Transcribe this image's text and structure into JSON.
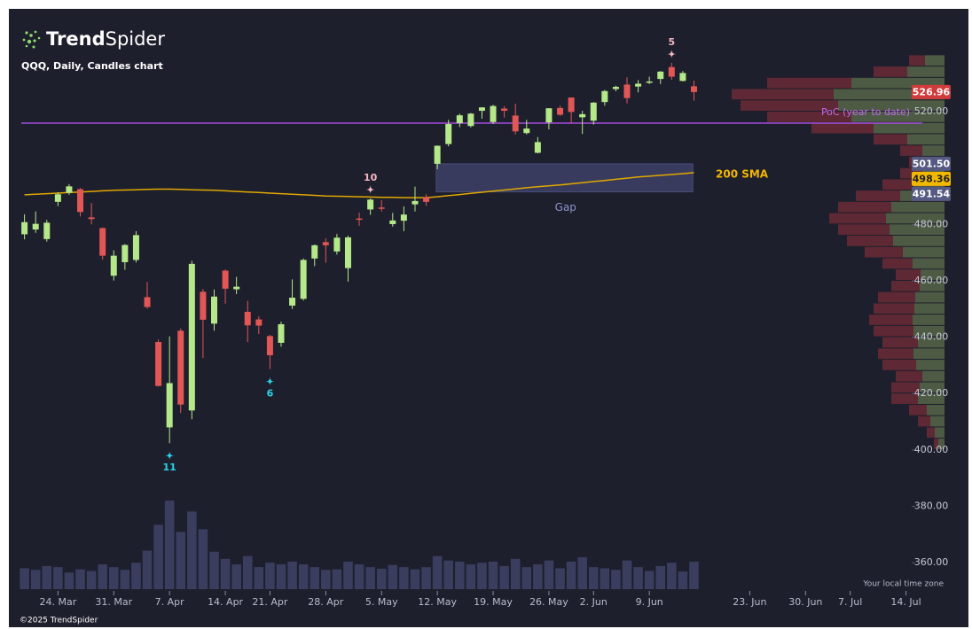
{
  "page": {
    "brand_bold": "Trend",
    "brand_regular": "Spider",
    "copyright": "©2025 TrendSpider",
    "timezone_note": "Your local time zone"
  },
  "chart_data": {
    "type": "candlestick",
    "title": "QQQ, Daily, Candles chart",
    "up_color": "#b4e889",
    "down_color": "#e25656",
    "xlim": [
      -1.4,
      84.6
    ],
    "ylim": [
      350,
      553
    ],
    "yticks": [
      {
        "value": 360,
        "label": "360.00"
      },
      {
        "value": 380,
        "label": "380.00"
      },
      {
        "value": 400,
        "label": "400.00"
      },
      {
        "value": 420,
        "label": "420.00"
      },
      {
        "value": 440,
        "label": "440.00"
      },
      {
        "value": 460,
        "label": "460.00"
      },
      {
        "value": 480,
        "label": "480.00"
      },
      {
        "value": 500,
        "label": "500.00"
      },
      {
        "value": 520,
        "label": "520.00"
      }
    ],
    "xticks": [
      {
        "value": 3,
        "label": "24. Mar"
      },
      {
        "value": 8,
        "label": "31. Mar"
      },
      {
        "value": 13,
        "label": "7. Apr"
      },
      {
        "value": 18,
        "label": "14. Apr"
      },
      {
        "value": 22,
        "label": "21. Apr"
      },
      {
        "value": 27,
        "label": "28. Apr"
      },
      {
        "value": 32,
        "label": "5. May"
      },
      {
        "value": 37,
        "label": "12. May"
      },
      {
        "value": 42,
        "label": "19. May"
      },
      {
        "value": 47,
        "label": "26. May"
      },
      {
        "value": 51,
        "label": "2. Jun"
      },
      {
        "value": 56,
        "label": "9. Jun"
      },
      {
        "value": 65,
        "label": "23. Jun"
      },
      {
        "value": 70,
        "label": "30. Jun"
      },
      {
        "value": 74,
        "label": "7. Jul"
      },
      {
        "value": 79,
        "label": "14. Jul"
      }
    ],
    "candles": {
      "x": [
        0,
        1,
        2,
        3,
        4,
        5,
        6,
        7,
        8,
        9,
        10,
        11,
        12,
        13,
        14,
        15,
        16,
        17,
        18,
        19,
        20,
        21,
        22,
        23,
        24,
        25,
        26,
        27,
        28,
        29,
        30,
        31,
        32,
        33,
        34,
        35,
        36,
        37,
        38,
        39,
        40,
        41,
        42,
        43,
        44,
        45,
        46,
        47,
        48,
        49,
        50,
        51,
        52,
        53,
        54,
        55,
        56,
        57,
        58,
        59,
        60
      ],
      "open": [
        476.5,
        478.2,
        474.8,
        488.0,
        491.2,
        492.5,
        482.5,
        478.7,
        461.8,
        466.6,
        467.4,
        454.2,
        438.3,
        408.0,
        442.3,
        414.0,
        456.1,
        444.8,
        463.6,
        457.0,
        449.0,
        446.3,
        440.4,
        438.0,
        451.2,
        453.6,
        467.9,
        473.7,
        470.4,
        464.5,
        482.1,
        485.3,
        486.0,
        480.1,
        481.3,
        487.1,
        489.6,
        501.5,
        508.5,
        515.9,
        514.9,
        520.3,
        516.3,
        521.1,
        518.6,
        512.4,
        505.4,
        516.2,
        521.3,
        525.0,
        518.0,
        516.8,
        523.4,
        528.0,
        529.6,
        528.9,
        530.4,
        531.6,
        535.8,
        530.9,
        529.0
      ],
      "high": [
        483.6,
        484.6,
        481.6,
        491.4,
        494.3,
        492.9,
        487.6,
        478.9,
        470.8,
        473.0,
        477.6,
        459.6,
        439.2,
        440.3,
        443.1,
        467.1,
        457.1,
        456.9,
        464.0,
        461.4,
        452.9,
        447.4,
        440.8,
        445.5,
        460.5,
        467.9,
        472.9,
        475.1,
        476.6,
        476.0,
        484.2,
        489.2,
        488.6,
        484.1,
        486.4,
        493.4,
        490.7,
        508.0,
        517.1,
        519.3,
        519.5,
        521.6,
        522.4,
        521.9,
        522.8,
        517.1,
        511.0,
        521.2,
        522.1,
        525.0,
        520.3,
        523.4,
        527.7,
        529.2,
        532.2,
        531.2,
        532.4,
        534.4,
        537.3,
        534.4,
        531.0
      ],
      "low": [
        474.7,
        477.0,
        473.9,
        486.5,
        490.5,
        482.8,
        480.0,
        467.5,
        460.1,
        463.9,
        466.5,
        450.1,
        422.5,
        402.4,
        413.1,
        410.9,
        432.6,
        442.3,
        451.9,
        455.3,
        438.3,
        441.1,
        428.7,
        436.6,
        450.0,
        453.0,
        465.2,
        466.4,
        469.3,
        459.7,
        479.5,
        483.4,
        484.6,
        479.2,
        477.6,
        484.6,
        486.6,
        499.6,
        507.7,
        514.5,
        514.4,
        517.5,
        515.6,
        517.9,
        511.9,
        511.9,
        505.2,
        513.7,
        518.5,
        515.9,
        512.1,
        515.4,
        522.1,
        527.2,
        522.9,
        526.8,
        529.8,
        529.8,
        531.3,
        530.7,
        523.9
      ],
      "close": [
        480.8,
        480.2,
        480.6,
        490.7,
        493.5,
        484.4,
        481.9,
        468.9,
        468.9,
        472.7,
        476.2,
        450.7,
        422.7,
        423.7,
        416.1,
        466.0,
        446.2,
        454.4,
        457.2,
        457.9,
        444.2,
        444.1,
        433.6,
        444.6,
        454.0,
        467.4,
        472.6,
        472.6,
        475.3,
        475.4,
        481.7,
        488.8,
        485.9,
        481.4,
        483.5,
        488.3,
        488.0,
        507.9,
        515.6,
        518.7,
        519.3,
        521.5,
        522.0,
        520.3,
        513.0,
        514.0,
        509.2,
        521.2,
        518.9,
        519.9,
        519.1,
        523.2,
        527.3,
        528.8,
        524.8,
        529.9,
        530.7,
        534.2,
        532.4,
        533.7,
        526.96
      ]
    },
    "volume": [
      38,
      35,
      42,
      40,
      30,
      36,
      33,
      45,
      40,
      35,
      48,
      70,
      117,
      161,
      104,
      141,
      109,
      68,
      55,
      45,
      60,
      40,
      48,
      45,
      50,
      45,
      40,
      35,
      36,
      50,
      45,
      40,
      37,
      44,
      40,
      36,
      40,
      60,
      52,
      50,
      45,
      48,
      50,
      42,
      55,
      40,
      45,
      52,
      38,
      50,
      58,
      40,
      38,
      35,
      52,
      40,
      33,
      42,
      48,
      32,
      50
    ],
    "volume_color": "#3a3d5e",
    "sma": {
      "name": "200 SMA",
      "color": "#e0a800",
      "values": [
        490.5,
        490.7,
        490.9,
        491.1,
        491.3,
        491.5,
        491.7,
        491.9,
        492.1,
        492.2,
        492.3,
        492.4,
        492.5,
        492.5,
        492.4,
        492.3,
        492.2,
        492.1,
        491.9,
        491.7,
        491.5,
        491.3,
        491.1,
        490.9,
        490.7,
        490.5,
        490.3,
        490.1,
        490.0,
        489.9,
        489.8,
        489.7,
        489.6,
        489.6,
        489.5,
        489.5,
        489.5,
        489.8,
        490.2,
        490.6,
        491.0,
        491.4,
        491.8,
        492.2,
        492.6,
        493.0,
        493.4,
        493.7,
        494.0,
        494.4,
        494.8,
        495.2,
        495.6,
        496.0,
        496.4,
        496.8,
        497.1,
        497.4,
        497.7,
        498.0,
        498.36
      ]
    },
    "gap": {
      "label": "Gap",
      "x": [
        37,
        60
      ],
      "low": 491.54,
      "high": 501.5,
      "color": "#3b3f63"
    },
    "poc": {
      "label": "PoC (year to date)",
      "value": 515.9,
      "color": "#a34ee0"
    },
    "annotations": [
      {
        "x": 13,
        "position": "below",
        "label": 11,
        "color": "#27d3e8"
      },
      {
        "x": 22,
        "position": "below",
        "label": 6,
        "color": "#27d3e8"
      },
      {
        "x": 31,
        "position": "above",
        "label": 10,
        "color": "#f4b8c4"
      },
      {
        "x": 58,
        "position": "above",
        "label": 5,
        "color": "#f4b8c4"
      }
    ],
    "price_labels": [
      {
        "value": 526.96,
        "color": "#d23b3b",
        "text_color": "#ffffff"
      },
      {
        "value": {
          "value": 501.5,
          "label": "501.50"
        },
        "color": "#565a82",
        "text_color": "#ffffff"
      },
      {
        "value": 498.36,
        "color": "#f2b800",
        "text_color": "#1e1f2c"
      },
      {
        "value": 491.54,
        "color": "#565a82",
        "text_color": "#ffffff"
      }
    ],
    "volume_profile": {
      "bins": [
        400,
        404,
        408,
        412,
        416,
        420,
        424,
        428,
        432,
        436,
        440,
        444,
        448,
        452,
        456,
        460,
        464,
        468,
        472,
        476,
        480,
        484,
        488,
        492,
        496,
        500,
        504,
        508,
        512,
        516,
        520,
        524,
        528,
        532,
        536,
        540
      ],
      "buy": [
        7,
        11,
        16,
        20,
        30,
        28,
        25,
        32,
        35,
        30,
        35,
        36,
        34,
        33,
        28,
        27,
        36,
        47,
        58,
        62,
        66,
        60,
        50,
        35,
        25,
        20,
        25,
        42,
        80,
        105,
        120,
        125,
        105,
        42,
        22
      ],
      "sell": [
        5,
        9,
        14,
        20,
        30,
        32,
        30,
        38,
        40,
        40,
        45,
        49,
        46,
        42,
        32,
        28,
        34,
        43,
        52,
        58,
        64,
        60,
        50,
        35,
        25,
        20,
        25,
        38,
        70,
        95,
        110,
        115,
        95,
        38,
        18
      ],
      "buy_color": "#56664a",
      "sell_color": "#6a2a36"
    }
  }
}
